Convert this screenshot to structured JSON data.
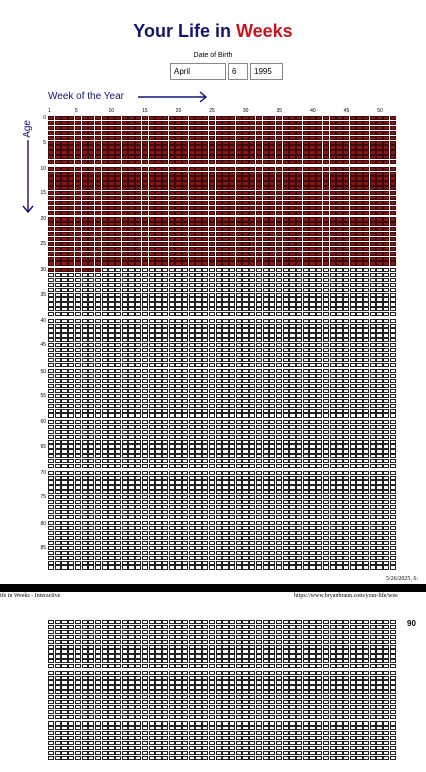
{
  "title": {
    "part1": "Your Life in",
    "part2": "Weeks"
  },
  "dob": {
    "label": "Date of Birth",
    "month": "April",
    "day": "6",
    "year": "1995"
  },
  "axes": {
    "week_label": "Week of the Year",
    "age_label": "Age",
    "week_ticks": [
      "1",
      "5",
      "10",
      "15",
      "20",
      "25",
      "30",
      "35",
      "40",
      "45",
      "50"
    ],
    "age_ticks": [
      "0",
      "5",
      "10",
      "15",
      "20",
      "25",
      "30",
      "35",
      "40",
      "45",
      "50",
      "55",
      "60",
      "65",
      "70",
      "75",
      "80",
      "85"
    ]
  },
  "grid": {
    "weeks_per_year": 52,
    "rows_first_page": 90,
    "rows_second_page": 28,
    "lived_weeks": 1568
  },
  "end_label": "90",
  "print_header": {
    "date": "5/26/2025, 6:",
    "title": "ife in Weeks - Interactive",
    "url": "https://www.bryanbraun.com/your-life/wee"
  },
  "colors": {
    "lived": "#8b1414",
    "title_blue": "#14146e",
    "title_red": "#c8141e"
  }
}
